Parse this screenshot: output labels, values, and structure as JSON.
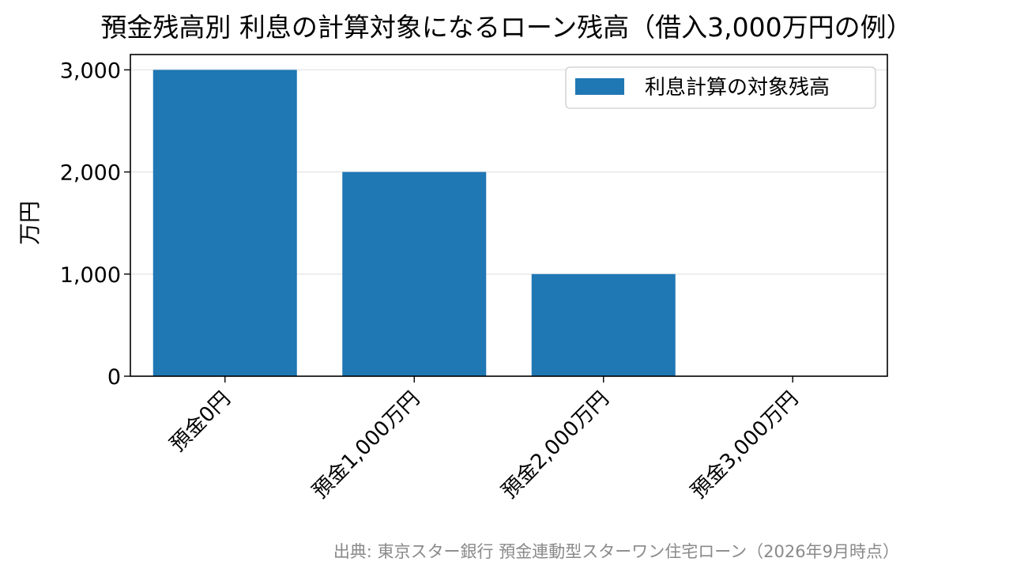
{
  "chart_data": {
    "type": "bar",
    "title": "預金残高別 利息の計算対象になるローン残高（借入3,000万円の例）",
    "categories": [
      "預金0円",
      "預金1,000万円",
      "預金2,000万円",
      "預金3,000万円"
    ],
    "series": [
      {
        "name": "利息計算の対象残高",
        "values": [
          3000,
          2000,
          1000,
          0
        ],
        "color": "#1f77b4"
      }
    ],
    "ylabel": "万円",
    "xlabel": "",
    "yticks": [
      0,
      1000,
      2000,
      3000
    ],
    "ytick_labels": [
      "0",
      "1,000",
      "2,000",
      "3,000"
    ],
    "ylim": [
      0,
      3150
    ],
    "grid": "horizontal",
    "legend": "top-right",
    "source": "出典: 東京スター銀行 預金連動型スターワン住宅ローン（2026年9月時点）"
  }
}
